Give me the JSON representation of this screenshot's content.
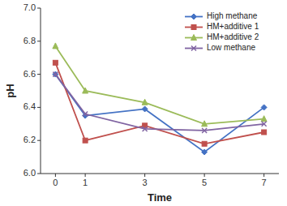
{
  "chart_data": {
    "type": "line",
    "xlabel": "Time",
    "ylabel": "pH",
    "x": [
      0,
      1,
      3,
      5,
      7
    ],
    "series": [
      {
        "name": "High methane",
        "color": "#4472C4",
        "marker": "diamond",
        "values": [
          6.6,
          6.35,
          6.39,
          6.13,
          6.4
        ]
      },
      {
        "name": "HM+additive 1",
        "color": "#C0504D",
        "marker": "square",
        "values": [
          6.67,
          6.2,
          6.29,
          6.18,
          6.25
        ]
      },
      {
        "name": "HM+additive 2",
        "color": "#9BBB59",
        "marker": "triangle",
        "values": [
          6.77,
          6.5,
          6.43,
          6.3,
          6.33
        ]
      },
      {
        "name": "Low methane",
        "color": "#8064A2",
        "marker": "x",
        "values": [
          6.6,
          6.36,
          6.27,
          6.26,
          6.3
        ]
      }
    ],
    "xlim": [
      -0.5,
      7.5
    ],
    "xticks": [
      0,
      1,
      3,
      5,
      7
    ],
    "ylim": [
      6,
      7
    ],
    "yticks": [
      {
        "value": 6,
        "label": "6.0"
      },
      6.2,
      6.4,
      6.6,
      6.8,
      {
        "value": 7,
        "label": "7.0"
      }
    ],
    "grid": false,
    "legend": "upper right"
  }
}
